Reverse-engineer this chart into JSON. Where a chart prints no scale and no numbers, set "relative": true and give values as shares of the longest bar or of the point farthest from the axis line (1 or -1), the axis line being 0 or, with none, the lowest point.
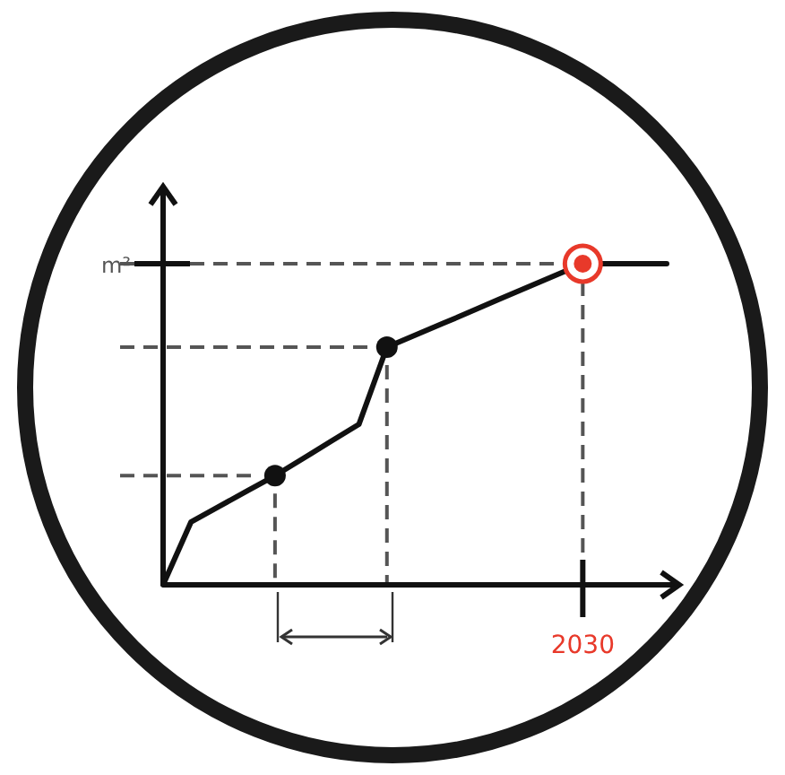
{
  "chart_data": {
    "type": "line",
    "relative": true,
    "ylabel": "m²",
    "categories": [
      null,
      null,
      null,
      null,
      null,
      null,
      null,
      null,
      null,
      null,
      null,
      null,
      null,
      null,
      null,
      null,
      null,
      null,
      null
    ],
    "annotations": [
      "2030"
    ],
    "ref_lines": [
      {
        "axis": "y",
        "value": 0.34,
        "color": "#555555",
        "line_style": "dashed"
      },
      {
        "axis": "y",
        "value": 0.74,
        "color": "#555555",
        "line_style": "dashed"
      }
    ],
    "series": [
      {
        "color": "#111111",
        "values": [
          0,
          0.196,
          0.244,
          0.292,
          0.34,
          0.393,
          0.447,
          0.5,
          0.74,
          0.777,
          0.814,
          0.851,
          0.889,
          0.926,
          0.963,
          1,
          1,
          1,
          1
        ]
      }
    ]
  }
}
